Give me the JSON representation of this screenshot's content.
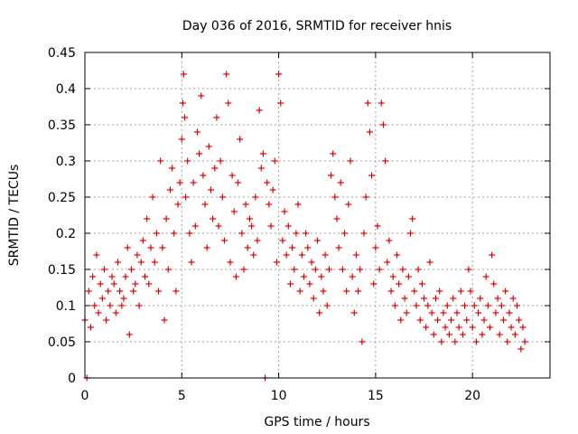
{
  "chart_data": {
    "type": "scatter",
    "title": "Day 036 of 2016, SRMTID for receiver hnis",
    "xlabel": "GPS time / hours",
    "ylabel": "SRMTID / TECUs",
    "xlim": [
      0,
      24
    ],
    "ylim": [
      0,
      0.45
    ],
    "x_ticks": [
      0,
      5,
      10,
      15,
      20
    ],
    "x_tick_labels": [
      "0",
      "5",
      "10",
      "15",
      "20"
    ],
    "y_ticks": [
      0,
      0.05,
      0.1,
      0.15,
      0.2,
      0.25,
      0.3,
      0.35,
      0.4,
      0.45
    ],
    "y_tick_labels": [
      "0",
      "0.05",
      "0.1",
      "0.15",
      "0.2",
      "0.25",
      "0.3",
      "0.35",
      "0.4",
      "0.45"
    ],
    "grid": true,
    "marker": "plus",
    "marker_color": "#e00000",
    "series": [
      {
        "name": "SRMTID",
        "points": [
          [
            0.0,
            0.08
          ],
          [
            0.1,
            0.0
          ],
          [
            0.2,
            0.12
          ],
          [
            0.3,
            0.07
          ],
          [
            0.4,
            0.14
          ],
          [
            0.5,
            0.1
          ],
          [
            0.6,
            0.17
          ],
          [
            0.7,
            0.09
          ],
          [
            0.8,
            0.13
          ],
          [
            0.9,
            0.11
          ],
          [
            1.0,
            0.15
          ],
          [
            1.1,
            0.08
          ],
          [
            1.2,
            0.12
          ],
          [
            1.3,
            0.1
          ],
          [
            1.4,
            0.14
          ],
          [
            1.5,
            0.13
          ],
          [
            1.6,
            0.09
          ],
          [
            1.7,
            0.16
          ],
          [
            1.8,
            0.12
          ],
          [
            1.9,
            0.1
          ],
          [
            2.0,
            0.11
          ],
          [
            2.1,
            0.14
          ],
          [
            2.2,
            0.18
          ],
          [
            2.3,
            0.06
          ],
          [
            2.4,
            0.15
          ],
          [
            2.5,
            0.12
          ],
          [
            2.6,
            0.13
          ],
          [
            2.7,
            0.17
          ],
          [
            2.8,
            0.1
          ],
          [
            2.9,
            0.16
          ],
          [
            3.0,
            0.19
          ],
          [
            3.1,
            0.14
          ],
          [
            3.2,
            0.22
          ],
          [
            3.3,
            0.13
          ],
          [
            3.4,
            0.18
          ],
          [
            3.5,
            0.25
          ],
          [
            3.6,
            0.16
          ],
          [
            3.7,
            0.2
          ],
          [
            3.8,
            0.12
          ],
          [
            3.9,
            0.3
          ],
          [
            4.0,
            0.18
          ],
          [
            4.1,
            0.08
          ],
          [
            4.2,
            0.22
          ],
          [
            4.3,
            0.15
          ],
          [
            4.4,
            0.26
          ],
          [
            4.5,
            0.29
          ],
          [
            4.6,
            0.2
          ],
          [
            4.7,
            0.12
          ],
          [
            4.8,
            0.24
          ],
          [
            4.9,
            0.27
          ],
          [
            5.0,
            0.33
          ],
          [
            5.05,
            0.38
          ],
          [
            5.1,
            0.42
          ],
          [
            5.15,
            0.36
          ],
          [
            5.2,
            0.25
          ],
          [
            5.3,
            0.3
          ],
          [
            5.4,
            0.2
          ],
          [
            5.5,
            0.16
          ],
          [
            5.6,
            0.27
          ],
          [
            5.7,
            0.21
          ],
          [
            5.8,
            0.34
          ],
          [
            5.9,
            0.31
          ],
          [
            6.0,
            0.39
          ],
          [
            6.1,
            0.28
          ],
          [
            6.2,
            0.24
          ],
          [
            6.3,
            0.18
          ],
          [
            6.4,
            0.32
          ],
          [
            6.5,
            0.26
          ],
          [
            6.6,
            0.22
          ],
          [
            6.7,
            0.29
          ],
          [
            6.8,
            0.36
          ],
          [
            6.9,
            0.21
          ],
          [
            7.0,
            0.3
          ],
          [
            7.1,
            0.25
          ],
          [
            7.2,
            0.19
          ],
          [
            7.3,
            0.42
          ],
          [
            7.4,
            0.38
          ],
          [
            7.5,
            0.16
          ],
          [
            7.6,
            0.28
          ],
          [
            7.7,
            0.23
          ],
          [
            7.8,
            0.14
          ],
          [
            7.9,
            0.27
          ],
          [
            8.0,
            0.33
          ],
          [
            8.1,
            0.2
          ],
          [
            8.2,
            0.15
          ],
          [
            8.3,
            0.24
          ],
          [
            8.4,
            0.18
          ],
          [
            8.5,
            0.22
          ],
          [
            8.6,
            0.21
          ],
          [
            8.7,
            0.17
          ],
          [
            8.8,
            0.25
          ],
          [
            8.9,
            0.19
          ],
          [
            9.0,
            0.37
          ],
          [
            9.1,
            0.29
          ],
          [
            9.2,
            0.31
          ],
          [
            9.3,
            0.0
          ],
          [
            9.4,
            0.27
          ],
          [
            9.5,
            0.24
          ],
          [
            9.6,
            0.21
          ],
          [
            9.7,
            0.26
          ],
          [
            9.8,
            0.3
          ],
          [
            9.9,
            0.16
          ],
          [
            10.0,
            0.42
          ],
          [
            10.1,
            0.38
          ],
          [
            10.2,
            0.19
          ],
          [
            10.3,
            0.23
          ],
          [
            10.4,
            0.17
          ],
          [
            10.5,
            0.21
          ],
          [
            10.6,
            0.13
          ],
          [
            10.7,
            0.18
          ],
          [
            10.8,
            0.15
          ],
          [
            10.9,
            0.2
          ],
          [
            11.0,
            0.24
          ],
          [
            11.1,
            0.12
          ],
          [
            11.2,
            0.17
          ],
          [
            11.3,
            0.14
          ],
          [
            11.4,
            0.2
          ],
          [
            11.5,
            0.18
          ],
          [
            11.6,
            0.13
          ],
          [
            11.7,
            0.16
          ],
          [
            11.8,
            0.11
          ],
          [
            11.9,
            0.15
          ],
          [
            12.0,
            0.19
          ],
          [
            12.1,
            0.09
          ],
          [
            12.2,
            0.14
          ],
          [
            12.3,
            0.12
          ],
          [
            12.4,
            0.17
          ],
          [
            12.5,
            0.1
          ],
          [
            12.6,
            0.15
          ],
          [
            12.7,
            0.28
          ],
          [
            12.8,
            0.31
          ],
          [
            12.9,
            0.25
          ],
          [
            13.0,
            0.22
          ],
          [
            13.1,
            0.18
          ],
          [
            13.2,
            0.27
          ],
          [
            13.3,
            0.15
          ],
          [
            13.4,
            0.2
          ],
          [
            13.5,
            0.12
          ],
          [
            13.6,
            0.24
          ],
          [
            13.7,
            0.3
          ],
          [
            13.8,
            0.14
          ],
          [
            13.9,
            0.09
          ],
          [
            14.0,
            0.17
          ],
          [
            14.1,
            0.12
          ],
          [
            14.2,
            0.15
          ],
          [
            14.3,
            0.05
          ],
          [
            14.4,
            0.2
          ],
          [
            14.5,
            0.25
          ],
          [
            14.6,
            0.38
          ],
          [
            14.7,
            0.34
          ],
          [
            14.8,
            0.28
          ],
          [
            14.9,
            0.13
          ],
          [
            15.0,
            0.18
          ],
          [
            15.1,
            0.21
          ],
          [
            15.2,
            0.15
          ],
          [
            15.3,
            0.38
          ],
          [
            15.4,
            0.35
          ],
          [
            15.5,
            0.3
          ],
          [
            15.6,
            0.16
          ],
          [
            15.7,
            0.19
          ],
          [
            15.8,
            0.12
          ],
          [
            15.9,
            0.14
          ],
          [
            16.0,
            0.1
          ],
          [
            16.1,
            0.17
          ],
          [
            16.2,
            0.13
          ],
          [
            16.3,
            0.08
          ],
          [
            16.4,
            0.15
          ],
          [
            16.5,
            0.11
          ],
          [
            16.6,
            0.09
          ],
          [
            16.7,
            0.14
          ],
          [
            16.8,
            0.2
          ],
          [
            16.9,
            0.22
          ],
          [
            17.0,
            0.12
          ],
          [
            17.1,
            0.1
          ],
          [
            17.2,
            0.15
          ],
          [
            17.3,
            0.08
          ],
          [
            17.4,
            0.13
          ],
          [
            17.5,
            0.11
          ],
          [
            17.6,
            0.07
          ],
          [
            17.7,
            0.1
          ],
          [
            17.8,
            0.16
          ],
          [
            17.9,
            0.09
          ],
          [
            18.0,
            0.06
          ],
          [
            18.1,
            0.11
          ],
          [
            18.2,
            0.08
          ],
          [
            18.3,
            0.12
          ],
          [
            18.4,
            0.05
          ],
          [
            18.5,
            0.09
          ],
          [
            18.6,
            0.07
          ],
          [
            18.7,
            0.1
          ],
          [
            18.8,
            0.06
          ],
          [
            18.9,
            0.08
          ],
          [
            19.0,
            0.11
          ],
          [
            19.1,
            0.05
          ],
          [
            19.2,
            0.09
          ],
          [
            19.3,
            0.07
          ],
          [
            19.4,
            0.12
          ],
          [
            19.5,
            0.06
          ],
          [
            19.6,
            0.1
          ],
          [
            19.7,
            0.08
          ],
          [
            19.8,
            0.15
          ],
          [
            19.9,
            0.12
          ],
          [
            20.0,
            0.07
          ],
          [
            20.1,
            0.1
          ],
          [
            20.2,
            0.05
          ],
          [
            20.3,
            0.09
          ],
          [
            20.4,
            0.11
          ],
          [
            20.5,
            0.06
          ],
          [
            20.6,
            0.08
          ],
          [
            20.7,
            0.14
          ],
          [
            20.8,
            0.1
          ],
          [
            20.9,
            0.07
          ],
          [
            21.0,
            0.17
          ],
          [
            21.1,
            0.13
          ],
          [
            21.2,
            0.09
          ],
          [
            21.3,
            0.11
          ],
          [
            21.4,
            0.06
          ],
          [
            21.5,
            0.1
          ],
          [
            21.6,
            0.08
          ],
          [
            21.7,
            0.12
          ],
          [
            21.8,
            0.05
          ],
          [
            21.9,
            0.09
          ],
          [
            22.0,
            0.07
          ],
          [
            22.1,
            0.11
          ],
          [
            22.2,
            0.06
          ],
          [
            22.3,
            0.1
          ],
          [
            22.4,
            0.08
          ],
          [
            22.5,
            0.04
          ],
          [
            22.6,
            0.07
          ],
          [
            22.7,
            0.05
          ]
        ]
      }
    ]
  }
}
